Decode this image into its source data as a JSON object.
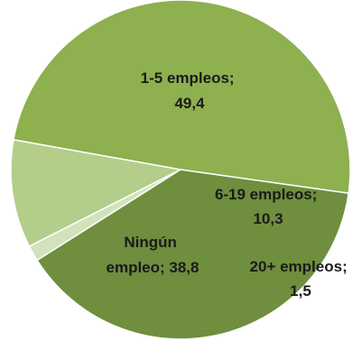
{
  "chart_data": {
    "type": "pie",
    "title": "",
    "slices": [
      {
        "label": "1-5 empleos;",
        "value_text": "49,4",
        "value": 49.4,
        "color": "#8eb04f"
      },
      {
        "label": "6-19 empleos;",
        "value_text": "10,3",
        "value": 10.3,
        "color": "#b3cd8a"
      },
      {
        "label": "20+ empleos;",
        "value_text": "1,5",
        "value": 1.5,
        "color": "#d2e2bb"
      },
      {
        "label": "Ningún",
        "label2": "empleo; 38,8",
        "value": 38.8,
        "color": "#6f8e3e"
      }
    ],
    "legend": "none",
    "start": "right, slightly below horizontal",
    "direction": "counterclockwise"
  }
}
